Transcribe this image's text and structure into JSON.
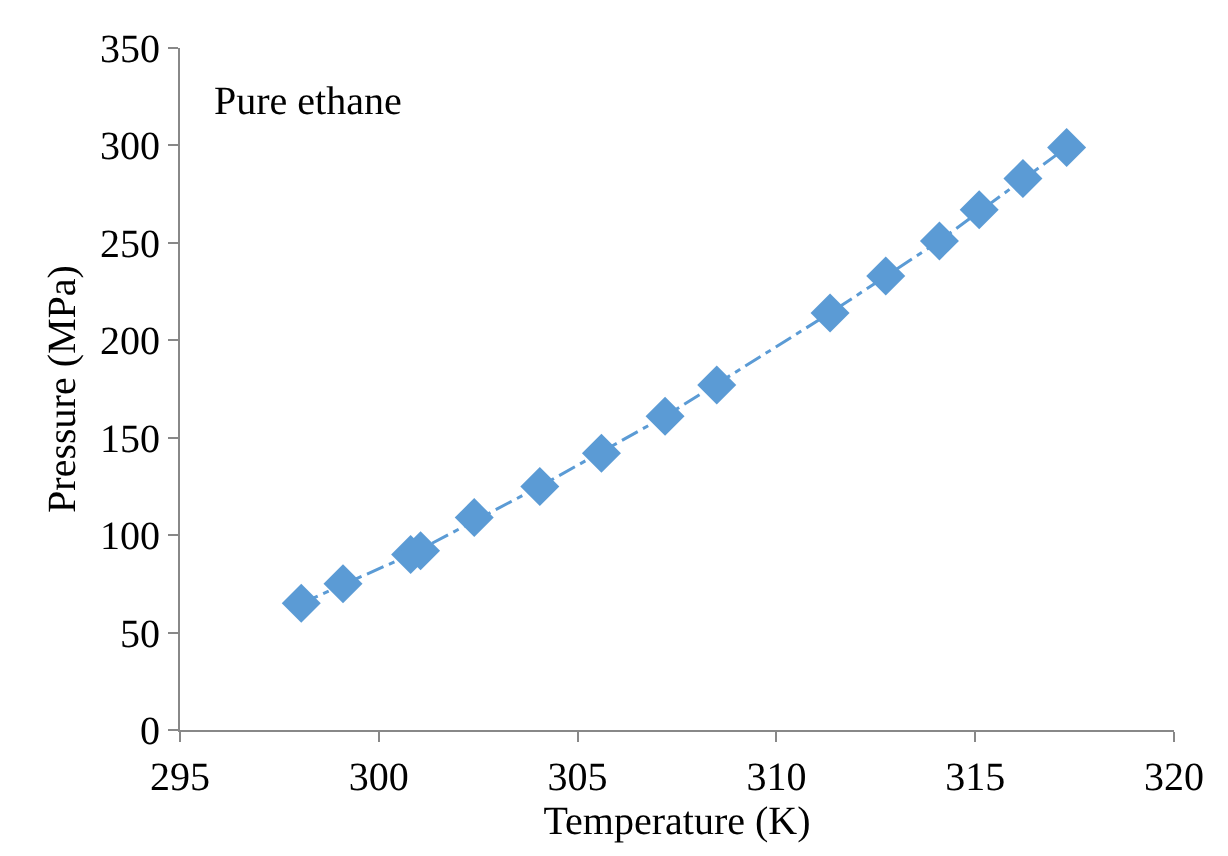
{
  "chart_data": {
    "type": "scatter",
    "xlabel": "Temperature (K)",
    "ylabel": "Pressure (MPa)",
    "annotations": [
      "Pure ethane"
    ],
    "xlim": [
      295,
      320
    ],
    "xticks": [
      295,
      300,
      305,
      310,
      315,
      320
    ],
    "ylim": [
      0,
      350
    ],
    "yticks": [
      0,
      50,
      100,
      150,
      200,
      250,
      300,
      350
    ],
    "grid": false,
    "marker": "diamond",
    "series": [
      {
        "type": "line",
        "color": "#5b9bd5",
        "line_style": "dashed",
        "marker": "none",
        "x": [
          298.05,
          300.8,
          304.05,
          307.2,
          311.35,
          314.1,
          317.3
        ],
        "values": [
          65,
          90,
          125,
          161,
          214,
          251,
          299
        ]
      },
      {
        "color": "#5b9bd5",
        "x": [
          298.05,
          299.1,
          300.8,
          301.05,
          302.4,
          304.05,
          305.6,
          307.2,
          308.5,
          311.35,
          312.75,
          314.1,
          315.1,
          316.2,
          317.3
        ],
        "values": [
          65,
          75,
          90,
          92,
          109,
          125,
          142,
          161,
          177,
          214,
          233,
          251,
          267,
          283,
          299
        ]
      }
    ]
  }
}
